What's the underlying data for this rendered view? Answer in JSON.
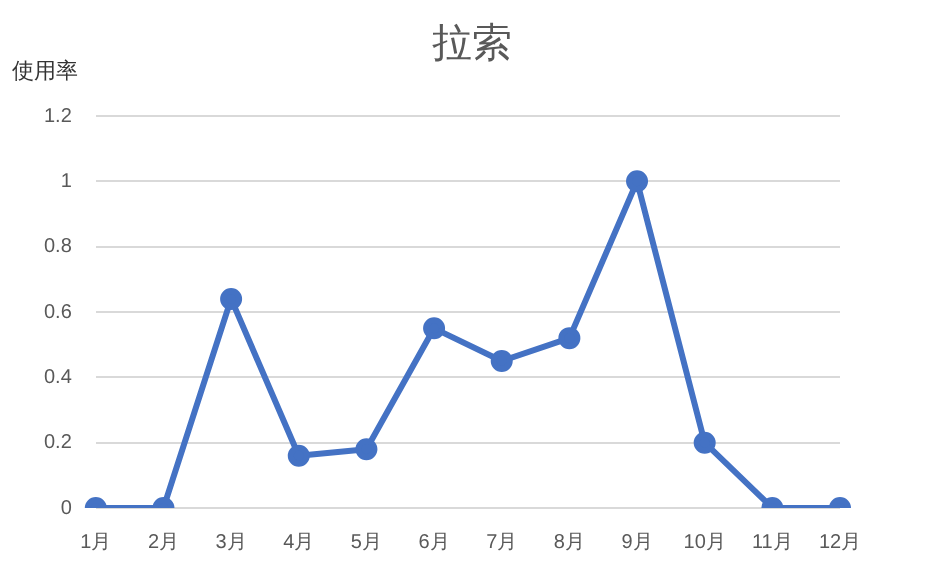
{
  "chart_data": {
    "type": "line",
    "title": "拉索",
    "ylabel": "使用率",
    "categories": [
      "1月",
      "2月",
      "3月",
      "4月",
      "5月",
      "6月",
      "7月",
      "8月",
      "9月",
      "10月",
      "11月",
      "12月"
    ],
    "series": [
      {
        "color": "#4472c4",
        "values": [
          0,
          0,
          0.64,
          0.16,
          0.18,
          0.55,
          0.45,
          0.52,
          1.0,
          0.2,
          0,
          0
        ]
      }
    ],
    "ylim": [
      0,
      1.2
    ],
    "yticks": [
      0,
      0.2,
      0.4,
      0.6,
      0.8,
      1,
      1.2
    ],
    "grid": "y",
    "legend": false,
    "marker": "circle",
    "line_style": "solid"
  }
}
